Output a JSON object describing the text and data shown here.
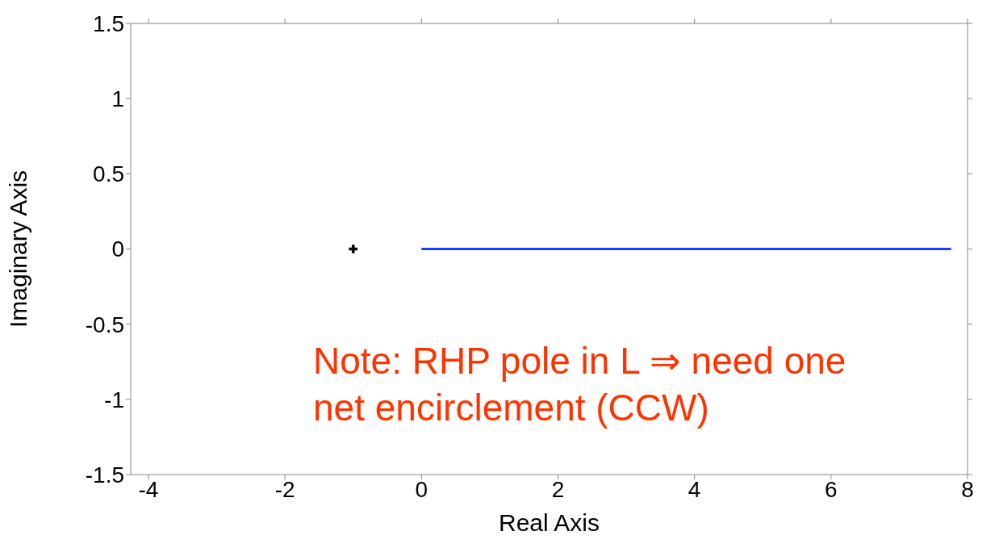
{
  "chart_data": {
    "type": "line",
    "xlabel": "Real Axis",
    "ylabel": "Imaginary Axis",
    "xlim": [
      -4.26,
      8
    ],
    "xticks": [
      -4,
      -2,
      0,
      2,
      4,
      6,
      8
    ],
    "ylim": [
      -1.5,
      1.5
    ],
    "yticks": [
      -1.5,
      -1,
      -0.5,
      0,
      0.5,
      1,
      1.5
    ],
    "grid": false,
    "marker": "none",
    "series": [
      {
        "color": "#1f3fff",
        "x": [
          0,
          7.76
        ],
        "values": [
          0,
          0
        ]
      },
      {
        "type": "scatter",
        "color": "#000000",
        "marker": "cross",
        "x": [
          -1
        ],
        "values": [
          0
        ]
      }
    ],
    "annotations": [
      "Note: RHP pole in L ⇒ need one net encirclement (CCW)"
    ]
  }
}
